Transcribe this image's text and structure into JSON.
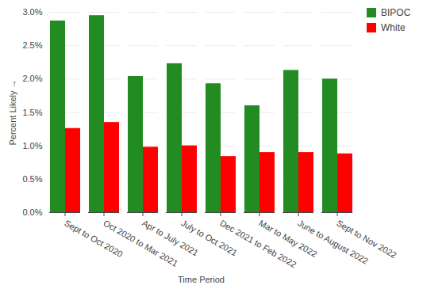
{
  "chart_data": {
    "type": "bar",
    "x_label": "Time Period",
    "y_label": "Percent Likely",
    "categories": [
      "Sept to Oct 2020",
      "Oct 2020 to Mar 2021",
      "Apr to July 2021",
      "July to Oct 2021",
      "Dec 2021 to Feb 2022",
      "Mar to May 2022",
      "June to August 2022",
      "Sept to Nov 2022"
    ],
    "series": [
      {
        "name": "BIPOC",
        "color": "#228B22",
        "values": [
          2.87,
          2.95,
          2.04,
          2.23,
          1.93,
          1.6,
          2.13,
          2.0
        ]
      },
      {
        "name": "White",
        "color": "#FF0000",
        "values": [
          1.26,
          1.35,
          0.98,
          1.0,
          0.84,
          0.9,
          0.9,
          0.88
        ]
      }
    ],
    "ylim": [
      0,
      3
    ],
    "yticks": [
      {
        "value": 0,
        "label": "0.0%"
      },
      {
        "value": 0.5,
        "label": "0.5%"
      },
      {
        "value": 1,
        "label": "1.0%"
      },
      {
        "value": 1.5,
        "label": "1.5%"
      },
      {
        "value": 2,
        "label": "2.0%"
      },
      {
        "value": 2.5,
        "label": "2.5%"
      },
      {
        "value": 3,
        "label": "3.0%"
      }
    ],
    "grid": true,
    "legend": "top-right"
  }
}
